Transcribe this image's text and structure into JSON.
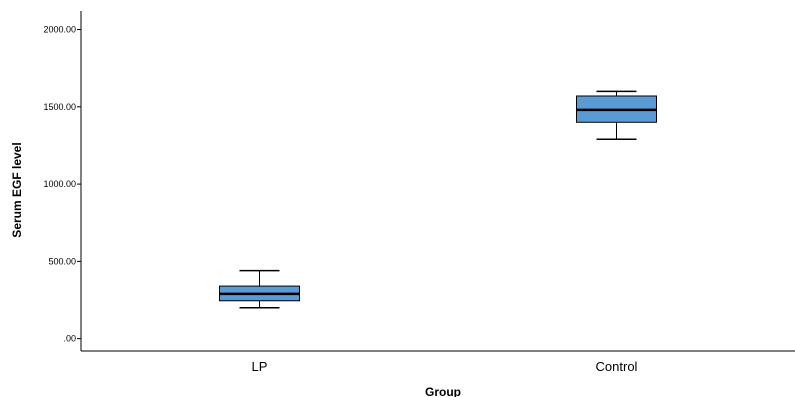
{
  "chart_data": {
    "type": "boxplot",
    "xlabel": "Group",
    "ylabel": "Serum EGF level",
    "ylim": [
      -80,
      2120
    ],
    "yticks": [
      0,
      500,
      1000,
      1500,
      2000
    ],
    "ytick_labels": [
      ".00",
      "500.00",
      "1000.00",
      "1500.00",
      "2000.00"
    ],
    "categories": [
      "LP",
      "Control"
    ],
    "boxes": [
      {
        "category": "LP",
        "min": 200,
        "q1": 245,
        "median": 290,
        "q3": 340,
        "max": 440
      },
      {
        "category": "Control",
        "min": 1290,
        "q1": 1400,
        "median": 1480,
        "q3": 1570,
        "max": 1600
      }
    ],
    "box_color": "#5b9bd5",
    "grid": false,
    "legend": "none"
  }
}
